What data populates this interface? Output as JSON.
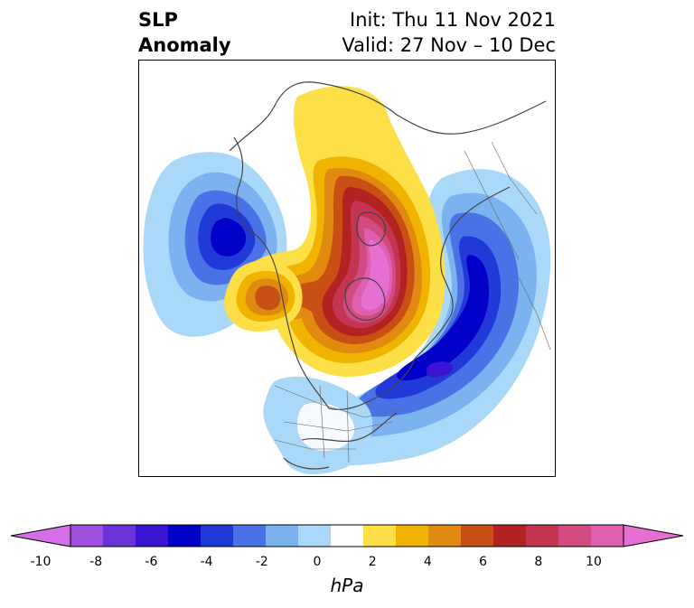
{
  "title": {
    "left_line1": "SLP",
    "left_line2": "Anomaly",
    "right_line1": "Init: Thu 11 Nov 2021",
    "right_line2": "Valid: 27 Nov – 10 Dec"
  },
  "colorbar": {
    "label": "hPa",
    "ticks": [
      "-10",
      "-8",
      "-6",
      "-4",
      "-2",
      "0",
      "2",
      "4",
      "6",
      "8",
      "10"
    ],
    "colors": [
      "#d46fe8",
      "#9d4fe0",
      "#6b33d8",
      "#3a14d0",
      "#0000c8",
      "#2039d8",
      "#4a72e6",
      "#7db2f0",
      "#aad8f8",
      "#ffffff",
      "#fde047",
      "#f0b400",
      "#e08a10",
      "#c85014",
      "#b22222",
      "#c33550",
      "#d14a80",
      "#dc5fb0",
      "#e66fd2"
    ]
  }
}
